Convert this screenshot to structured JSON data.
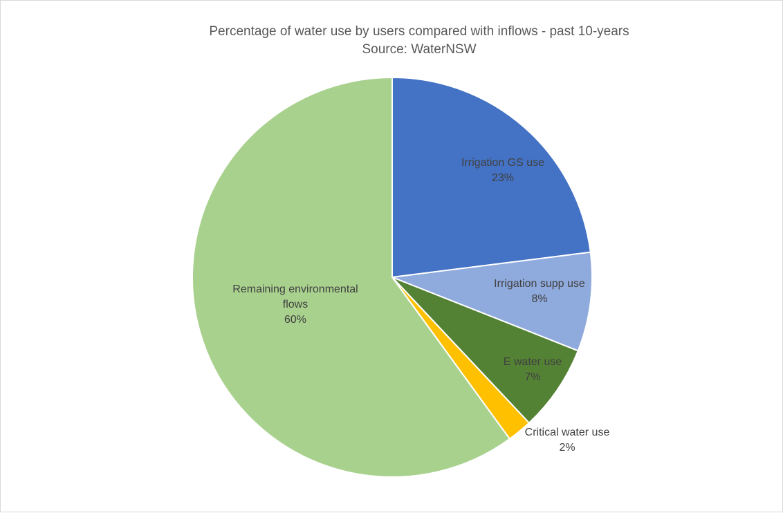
{
  "chart_data": {
    "type": "pie",
    "title": "Percentage of water use by users compared with inflows - past 10-years",
    "subtitle": "Source: WaterNSW",
    "slices": [
      {
        "label": "Irrigation GS use",
        "value": 23,
        "value_label": "23%",
        "color": "#4472C4"
      },
      {
        "label": "Irrigation supp use",
        "value": 8,
        "value_label": "8%",
        "color": "#8FAADC"
      },
      {
        "label": "E water use",
        "value": 7,
        "value_label": "7%",
        "color": "#548235"
      },
      {
        "label": "Critical water use",
        "value": 2,
        "value_label": "2%",
        "color": "#FFC000"
      },
      {
        "label": "Remaining environmental flows",
        "value": 60,
        "value_label": "60%",
        "color": "#A9D18E"
      }
    ],
    "legend": "none",
    "data_labels": "category name and percentage"
  }
}
